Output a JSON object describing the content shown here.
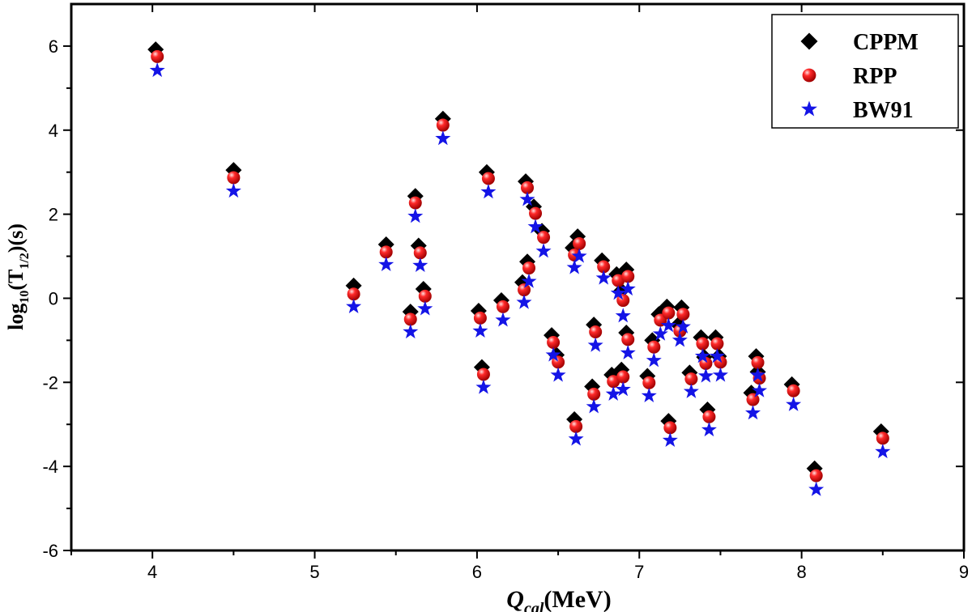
{
  "chart_data": {
    "type": "scatter",
    "title": "",
    "xlabel": {
      "main": "Q",
      "sub": "cal",
      "unit": "(MeV)"
    },
    "ylabel": {
      "pre": "log",
      "sub1": "10",
      "mid": "(T",
      "sub2": "1/2",
      "post": ")(s)"
    },
    "xlim": [
      3.5,
      9
    ],
    "ylim": [
      -6,
      7
    ],
    "xticks": [
      4,
      5,
      6,
      7,
      8,
      9
    ],
    "yticks": [
      -6,
      -4,
      -2,
      0,
      2,
      4,
      6
    ],
    "xtick_labels": [
      "4",
      "5",
      "6",
      "7",
      "8",
      "9"
    ],
    "ytick_labels": [
      "-6",
      "-4",
      "-2",
      "0",
      "2",
      "4",
      "6"
    ],
    "legend_position": "top-right",
    "grid": false,
    "series": [
      {
        "name": "CPPM",
        "marker": "diamond",
        "color": "#000000",
        "points": [
          [
            4.02,
            5.92
          ],
          [
            4.5,
            3.05
          ],
          [
            5.24,
            0.3
          ],
          [
            5.44,
            1.28
          ],
          [
            5.59,
            -0.32
          ],
          [
            5.62,
            2.43
          ],
          [
            5.64,
            1.25
          ],
          [
            5.67,
            0.22
          ],
          [
            5.79,
            4.27
          ],
          [
            6.01,
            -0.3
          ],
          [
            6.03,
            -1.64
          ],
          [
            6.06,
            3.0
          ],
          [
            6.15,
            -0.05
          ],
          [
            6.28,
            0.38
          ],
          [
            6.3,
            2.78
          ],
          [
            6.31,
            0.87
          ],
          [
            6.35,
            2.18
          ],
          [
            6.4,
            1.6
          ],
          [
            6.46,
            -0.88
          ],
          [
            6.49,
            -1.35
          ],
          [
            6.6,
            -2.88
          ],
          [
            6.59,
            1.2
          ],
          [
            6.62,
            1.47
          ],
          [
            6.71,
            -2.1
          ],
          [
            6.72,
            -0.63
          ],
          [
            6.77,
            0.9
          ],
          [
            6.83,
            -1.82
          ],
          [
            6.86,
            0.57
          ],
          [
            6.89,
            -1.7
          ],
          [
            6.89,
            0.18
          ],
          [
            6.92,
            0.68
          ],
          [
            6.92,
            -0.82
          ],
          [
            7.05,
            -1.85
          ],
          [
            7.08,
            -1.0
          ],
          [
            7.12,
            -0.38
          ],
          [
            7.17,
            -0.2
          ],
          [
            7.18,
            -2.92
          ],
          [
            7.24,
            -0.63
          ],
          [
            7.26,
            -0.22
          ],
          [
            7.31,
            -1.77
          ],
          [
            7.38,
            -0.93
          ],
          [
            7.4,
            -1.4
          ],
          [
            7.42,
            -2.65
          ],
          [
            7.47,
            -0.93
          ],
          [
            7.49,
            -1.38
          ],
          [
            7.69,
            -2.25
          ],
          [
            7.72,
            -1.38
          ],
          [
            7.73,
            -1.75
          ],
          [
            7.94,
            -2.05
          ],
          [
            8.08,
            -4.05
          ],
          [
            8.49,
            -3.17
          ]
        ]
      },
      {
        "name": "RPP",
        "marker": "circle",
        "color": "#e8101a",
        "points": [
          [
            4.03,
            5.75
          ],
          [
            4.5,
            2.87
          ],
          [
            5.24,
            0.1
          ],
          [
            5.44,
            1.1
          ],
          [
            5.59,
            -0.5
          ],
          [
            5.62,
            2.27
          ],
          [
            5.65,
            1.08
          ],
          [
            5.68,
            0.05
          ],
          [
            5.79,
            4.12
          ],
          [
            6.02,
            -0.47
          ],
          [
            6.04,
            -1.81
          ],
          [
            6.07,
            2.85
          ],
          [
            6.16,
            -0.2
          ],
          [
            6.29,
            0.2
          ],
          [
            6.31,
            2.63
          ],
          [
            6.32,
            0.72
          ],
          [
            6.36,
            2.02
          ],
          [
            6.41,
            1.45
          ],
          [
            6.47,
            -1.05
          ],
          [
            6.5,
            -1.52
          ],
          [
            6.61,
            -3.05
          ],
          [
            6.6,
            1.03
          ],
          [
            6.63,
            1.3
          ],
          [
            6.72,
            -2.28
          ],
          [
            6.73,
            -0.8
          ],
          [
            6.78,
            0.75
          ],
          [
            6.84,
            -1.98
          ],
          [
            6.87,
            0.42
          ],
          [
            6.9,
            -1.87
          ],
          [
            6.9,
            -0.05
          ],
          [
            6.93,
            0.52
          ],
          [
            6.93,
            -0.98
          ],
          [
            7.06,
            -2.01
          ],
          [
            7.09,
            -1.16
          ],
          [
            7.13,
            -0.52
          ],
          [
            7.18,
            -0.35
          ],
          [
            7.19,
            -3.08
          ],
          [
            7.25,
            -0.78
          ],
          [
            7.27,
            -0.38
          ],
          [
            7.32,
            -1.92
          ],
          [
            7.39,
            -1.08
          ],
          [
            7.41,
            -1.55
          ],
          [
            7.43,
            -2.82
          ],
          [
            7.48,
            -1.08
          ],
          [
            7.5,
            -1.52
          ],
          [
            7.7,
            -2.41
          ],
          [
            7.73,
            -1.53
          ],
          [
            7.74,
            -1.9
          ],
          [
            7.95,
            -2.2
          ],
          [
            8.09,
            -4.22
          ],
          [
            8.5,
            -3.33
          ]
        ]
      },
      {
        "name": "BW91",
        "marker": "star",
        "color": "#1414e6",
        "points": [
          [
            4.03,
            5.42
          ],
          [
            4.5,
            2.55
          ],
          [
            5.24,
            -0.2
          ],
          [
            5.44,
            0.8
          ],
          [
            5.59,
            -0.8
          ],
          [
            5.62,
            1.95
          ],
          [
            5.65,
            0.78
          ],
          [
            5.68,
            -0.25
          ],
          [
            5.79,
            3.8
          ],
          [
            6.02,
            -0.78
          ],
          [
            6.04,
            -2.12
          ],
          [
            6.07,
            2.53
          ],
          [
            6.16,
            -0.52
          ],
          [
            6.29,
            -0.1
          ],
          [
            6.31,
            2.35
          ],
          [
            6.32,
            0.4
          ],
          [
            6.36,
            1.7
          ],
          [
            6.41,
            1.12
          ],
          [
            6.47,
            -1.35
          ],
          [
            6.5,
            -1.83
          ],
          [
            6.61,
            -3.35
          ],
          [
            6.6,
            0.73
          ],
          [
            6.63,
            1.0
          ],
          [
            6.72,
            -2.58
          ],
          [
            6.73,
            -1.12
          ],
          [
            6.78,
            0.48
          ],
          [
            6.84,
            -2.28
          ],
          [
            6.87,
            0.12
          ],
          [
            6.9,
            -2.17
          ],
          [
            6.9,
            -0.42
          ],
          [
            6.93,
            0.22
          ],
          [
            6.93,
            -1.3
          ],
          [
            7.06,
            -2.32
          ],
          [
            7.09,
            -1.48
          ],
          [
            7.13,
            -0.85
          ],
          [
            7.18,
            -0.65
          ],
          [
            7.19,
            -3.38
          ],
          [
            7.25,
            -1.0
          ],
          [
            7.27,
            -0.68
          ],
          [
            7.32,
            -2.22
          ],
          [
            7.39,
            -1.38
          ],
          [
            7.41,
            -1.85
          ],
          [
            7.43,
            -3.13
          ],
          [
            7.48,
            -1.38
          ],
          [
            7.5,
            -1.83
          ],
          [
            7.7,
            -2.73
          ],
          [
            7.73,
            -1.83
          ],
          [
            7.74,
            -2.2
          ],
          [
            7.95,
            -2.53
          ],
          [
            8.09,
            -4.55
          ],
          [
            8.5,
            -3.65
          ]
        ]
      }
    ]
  }
}
